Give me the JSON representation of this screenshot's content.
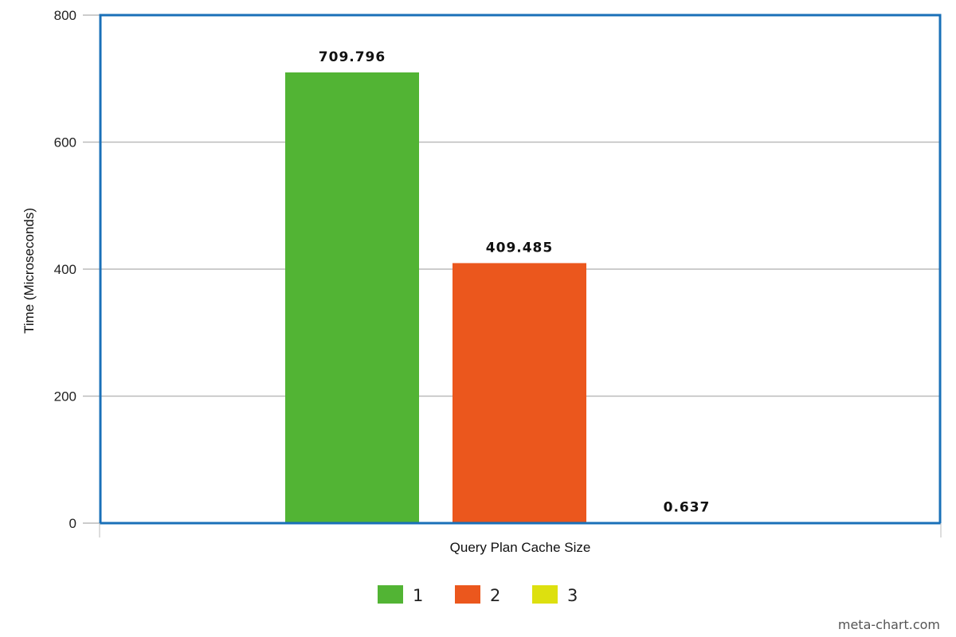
{
  "chart_data": {
    "type": "bar",
    "title": "",
    "xlabel": "Query Plan Cache Size",
    "ylabel": "Time (Microseconds)",
    "ylim": [
      0,
      800
    ],
    "yticks": [
      0,
      200,
      400,
      600,
      800
    ],
    "grid": true,
    "legend_position": "bottom-center",
    "series": [
      {
        "name": "1",
        "values": [
          709.796
        ],
        "label": "709.796",
        "color": "#52b434"
      },
      {
        "name": "2",
        "values": [
          409.485
        ],
        "label": "409.485",
        "color": "#eb571d"
      },
      {
        "name": "3",
        "values": [
          0.637
        ],
        "label": "0.637",
        "color": "#dde00f"
      }
    ]
  },
  "colors": {
    "plot_border": "#1a70b8",
    "gridline": "#bbbbbb"
  },
  "watermark": "meta-chart.com"
}
